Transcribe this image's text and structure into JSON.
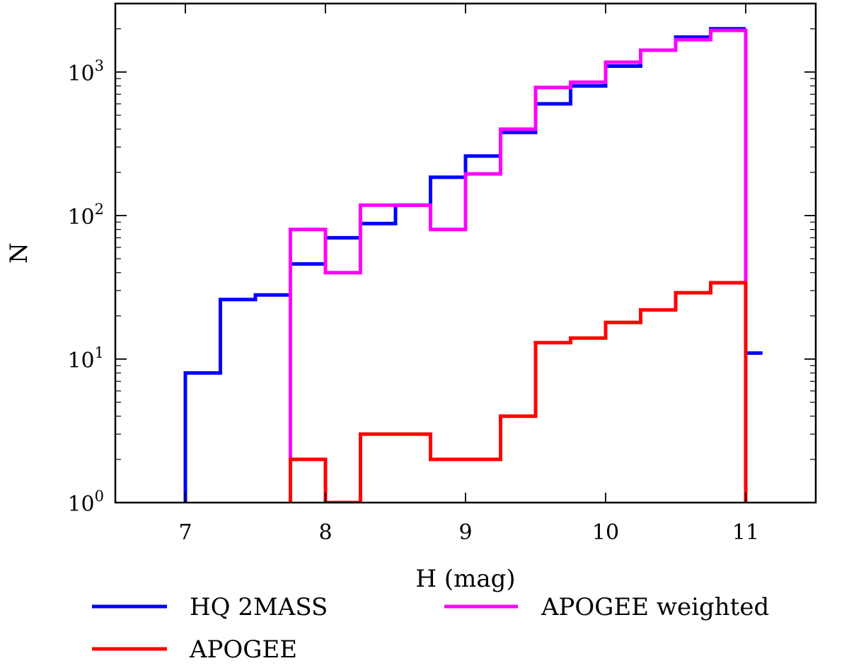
{
  "chart_data": {
    "type": "line",
    "style": "step histogram",
    "xlabel": "H (mag)",
    "ylabel": "N",
    "yscale": "log",
    "xlim": [
      6.5,
      11.5
    ],
    "ylim": [
      1,
      3000
    ],
    "x_ticks": [
      "7",
      "8",
      "9",
      "10",
      "11"
    ],
    "y_ticks": [
      {
        "base": "10",
        "exp": "0"
      },
      {
        "base": "10",
        "exp": "1"
      },
      {
        "base": "10",
        "exp": "2"
      },
      {
        "base": "10",
        "exp": "3"
      }
    ],
    "legend_position": "below-plot",
    "series": [
      {
        "name": "HQ 2MASS",
        "color": "#0000ff",
        "bins": [
          [
            7.0,
            7.25,
            8
          ],
          [
            7.25,
            7.5,
            26
          ],
          [
            7.5,
            7.75,
            28
          ],
          [
            7.75,
            8.0,
            46
          ],
          [
            8.0,
            8.25,
            70
          ],
          [
            8.25,
            8.5,
            88
          ],
          [
            8.5,
            8.75,
            118
          ],
          [
            8.75,
            9.0,
            185
          ],
          [
            9.0,
            9.25,
            260
          ],
          [
            9.25,
            9.5,
            380
          ],
          [
            9.5,
            9.75,
            600
          ],
          [
            9.75,
            10.0,
            800
          ],
          [
            10.0,
            10.25,
            1100
          ],
          [
            10.25,
            10.5,
            1420
          ],
          [
            10.5,
            10.75,
            1750
          ],
          [
            10.75,
            11.0,
            2000
          ],
          [
            11.0,
            11.12,
            11
          ]
        ]
      },
      {
        "name": "APOGEE weighted",
        "color": "#ff00ff",
        "bins": [
          [
            7.75,
            8.0,
            80
          ],
          [
            8.0,
            8.25,
            40
          ],
          [
            8.25,
            8.5,
            118
          ],
          [
            8.5,
            8.75,
            118
          ],
          [
            8.75,
            9.0,
            80
          ],
          [
            9.0,
            9.25,
            195
          ],
          [
            9.25,
            9.5,
            400
          ],
          [
            9.5,
            9.75,
            780
          ],
          [
            9.75,
            10.0,
            850
          ],
          [
            10.0,
            10.25,
            1170
          ],
          [
            10.25,
            10.5,
            1420
          ],
          [
            10.5,
            10.75,
            1680
          ],
          [
            10.75,
            11.0,
            1950
          ]
        ]
      },
      {
        "name": "APOGEE",
        "color": "#ff0000",
        "bins": [
          [
            7.75,
            8.0,
            2
          ],
          [
            8.0,
            8.25,
            1
          ],
          [
            8.25,
            8.5,
            3
          ],
          [
            8.5,
            8.75,
            3
          ],
          [
            8.75,
            9.0,
            2
          ],
          [
            9.0,
            9.25,
            2
          ],
          [
            9.25,
            9.5,
            4
          ],
          [
            9.5,
            9.75,
            13
          ],
          [
            9.75,
            10.0,
            14
          ],
          [
            10.0,
            10.25,
            18
          ],
          [
            10.25,
            10.5,
            22
          ],
          [
            10.5,
            10.75,
            29
          ],
          [
            10.75,
            11.0,
            34
          ]
        ]
      }
    ],
    "legend": [
      {
        "label": "HQ 2MASS",
        "color": "#0000ff"
      },
      {
        "label": "APOGEE weighted",
        "color": "#ff00ff"
      },
      {
        "label": "APOGEE",
        "color": "#ff0000"
      }
    ]
  }
}
